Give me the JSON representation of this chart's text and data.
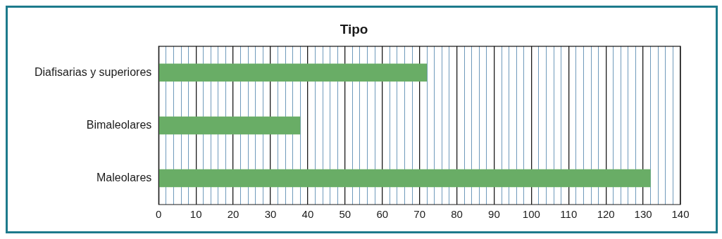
{
  "chart_data": {
    "type": "bar",
    "orientation": "horizontal",
    "title": "Tipo",
    "categories": [
      "Diafisarias y superiores",
      "Bimaleolares",
      "Maleolares"
    ],
    "values": [
      72,
      38,
      132
    ],
    "color": "#69ad66",
    "xlim": [
      0,
      140
    ],
    "xticks": [
      0,
      {
        "value": 2,
        "label": null
      },
      {
        "value": 4,
        "label": null
      },
      {
        "value": 6,
        "label": null
      },
      {
        "value": 8,
        "label": null
      },
      10,
      {
        "value": 12,
        "label": null
      },
      {
        "value": 14,
        "label": null
      },
      {
        "value": 16,
        "label": null
      },
      {
        "value": 18,
        "label": null
      },
      20,
      {
        "value": 22,
        "label": null
      },
      {
        "value": 24,
        "label": null
      },
      {
        "value": 26,
        "label": null
      },
      {
        "value": 28,
        "label": null
      },
      30,
      {
        "value": 32,
        "label": null
      },
      {
        "value": 34,
        "label": null
      },
      {
        "value": 36,
        "label": null
      },
      {
        "value": 38,
        "label": null
      },
      40,
      {
        "value": 42,
        "label": null
      },
      {
        "value": 44,
        "label": null
      },
      {
        "value": 46,
        "label": null
      },
      {
        "value": 48,
        "label": null
      },
      50,
      {
        "value": 52,
        "label": null
      },
      {
        "value": 54,
        "label": null
      },
      {
        "value": 56,
        "label": null
      },
      {
        "value": 58,
        "label": null
      },
      60,
      {
        "value": 62,
        "label": null
      },
      {
        "value": 64,
        "label": null
      },
      {
        "value": 66,
        "label": null
      },
      {
        "value": 68,
        "label": null
      },
      70,
      {
        "value": 72,
        "label": null
      },
      {
        "value": 74,
        "label": null
      },
      {
        "value": 76,
        "label": null
      },
      {
        "value": 78,
        "label": null
      },
      80,
      {
        "value": 82,
        "label": null
      },
      {
        "value": 84,
        "label": null
      },
      {
        "value": 86,
        "label": null
      },
      {
        "value": 88,
        "label": null
      },
      90,
      {
        "value": 92,
        "label": null
      },
      {
        "value": 94,
        "label": null
      },
      {
        "value": 96,
        "label": null
      },
      {
        "value": 98,
        "label": null
      },
      100,
      {
        "value": 102,
        "label": null
      },
      {
        "value": 104,
        "label": null
      },
      {
        "value": 106,
        "label": null
      },
      {
        "value": 108,
        "label": null
      },
      110,
      {
        "value": 112,
        "label": null
      },
      {
        "value": 114,
        "label": null
      },
      {
        "value": 116,
        "label": null
      },
      {
        "value": 118,
        "label": null
      },
      120,
      {
        "value": 122,
        "label": null
      },
      {
        "value": 124,
        "label": null
      },
      {
        "value": 126,
        "label": null
      },
      {
        "value": 128,
        "label": null
      },
      130,
      {
        "value": 132,
        "label": null
      },
      {
        "value": 134,
        "label": null
      },
      {
        "value": 136,
        "label": null
      },
      {
        "value": 138,
        "label": null
      },
      140
    ],
    "grid": true,
    "legend": false
  }
}
